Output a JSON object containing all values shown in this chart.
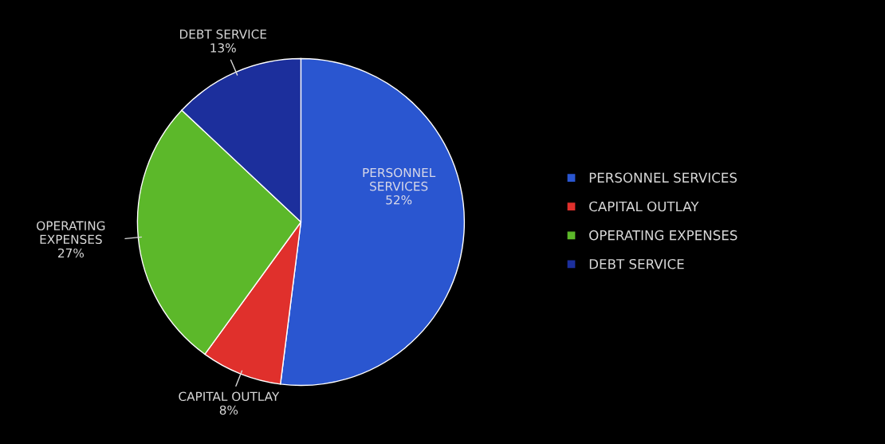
{
  "chart_data": {
    "type": "pie",
    "categories": [
      "PERSONNEL SERVICES",
      "CAPITAL OUTLAY",
      "OPERATING EXPENSES",
      "DEBT SERVICE"
    ],
    "values": [
      52,
      8,
      27,
      13
    ],
    "value_labels": [
      "52%",
      "8%",
      "27%",
      "13%"
    ],
    "colors": [
      "#2a56d0",
      "#e0302c",
      "#5cb82a",
      "#1c2f9c"
    ],
    "legend": "right"
  }
}
